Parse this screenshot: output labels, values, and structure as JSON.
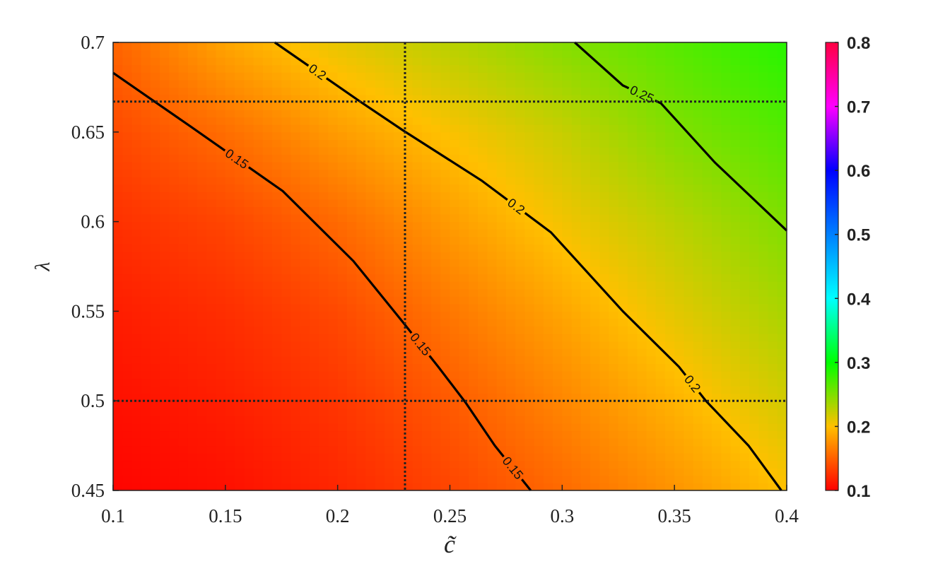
{
  "chart_data": {
    "type": "contour",
    "x_label": "c̃",
    "y_label": "λ",
    "xlim": [
      0.1,
      0.4
    ],
    "xticks": [
      0.1,
      0.15,
      0.2,
      0.25,
      0.3,
      0.35,
      0.4
    ],
    "ylim": [
      0.45,
      0.7
    ],
    "yticks": [
      0.45,
      0.5,
      0.55,
      0.6,
      0.65,
      0.7
    ],
    "x": [
      0.1,
      0.15,
      0.2,
      0.25,
      0.3,
      0.35,
      0.4
    ],
    "y": [
      0.45,
      0.5,
      0.55,
      0.6,
      0.65,
      0.7
    ],
    "z": [
      [
        0.102,
        0.108,
        0.12,
        0.136,
        0.155,
        0.177,
        0.2
      ],
      [
        0.108,
        0.116,
        0.128,
        0.147,
        0.17,
        0.193,
        0.218
      ],
      [
        0.115,
        0.124,
        0.138,
        0.162,
        0.186,
        0.211,
        0.234
      ],
      [
        0.125,
        0.136,
        0.155,
        0.181,
        0.205,
        0.227,
        0.25
      ],
      [
        0.138,
        0.157,
        0.181,
        0.202,
        0.222,
        0.249,
        0.268
      ],
      [
        0.152,
        0.186,
        0.21,
        0.228,
        0.248,
        0.266,
        0.285
      ]
    ],
    "contours": [
      {
        "level": 0.15,
        "color": "#000000",
        "x": [
          0.1,
          0.1346,
          0.1756,
          0.207,
          0.229,
          0.2448,
          0.257,
          0.27,
          0.286
        ],
        "y": [
          0.683,
          0.653,
          0.617,
          0.578,
          0.544,
          0.519,
          0.499,
          0.475,
          0.45
        ]
      },
      {
        "level": 0.2,
        "color": "#000000",
        "x": [
          0.172,
          0.21,
          0.229,
          0.264,
          0.295,
          0.327,
          0.352,
          0.364,
          0.383,
          0.3976
        ],
        "y": [
          0.7,
          0.667,
          0.651,
          0.623,
          0.594,
          0.55,
          0.519,
          0.5,
          0.475,
          0.45
        ]
      },
      {
        "level": 0.25,
        "color": "#000000",
        "x": [
          0.3056,
          0.327,
          0.344,
          0.368,
          0.4
        ],
        "y": [
          0.7,
          0.676,
          0.666,
          0.633,
          0.595
        ]
      }
    ],
    "ref_lines": {
      "x": [
        0.23
      ],
      "y": [
        0.5,
        0.667
      ],
      "color": "#222222"
    },
    "clim": [
      0.1,
      0.8
    ],
    "cticks": [
      0.1,
      0.2,
      0.3,
      0.4,
      0.5,
      0.6,
      0.7,
      0.8
    ],
    "colormap": [
      "#ff0000",
      "#ffc000",
      "#00ff00",
      "#00ffff",
      "#0080ff",
      "#0000ff",
      "#ff00ff",
      "#ff0040"
    ]
  }
}
